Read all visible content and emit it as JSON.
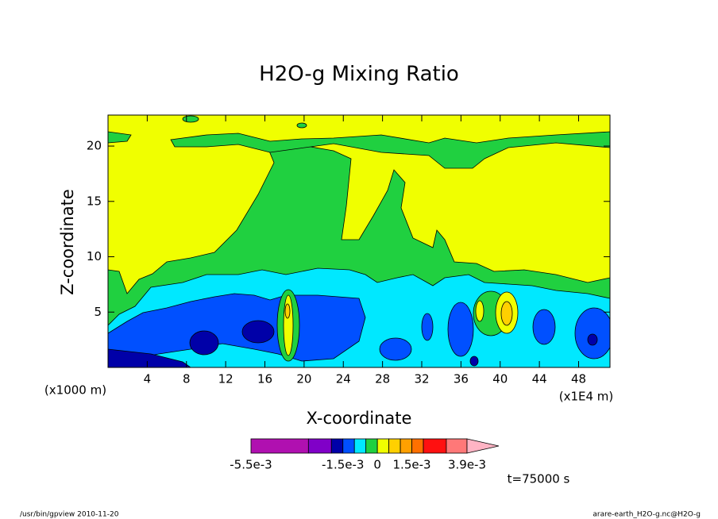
{
  "chart_data": {
    "type": "contourf",
    "title": "H2O-g Mixing Ratio",
    "x_label": "X-coordinate",
    "y_label": "Z-coordinate",
    "x_unit": "(x1E4 m)",
    "y_unit": "(x1000 m)",
    "xlim": [
      0,
      51.2
    ],
    "ylim": [
      0,
      22.8
    ],
    "xticks": [
      4,
      8,
      12,
      16,
      20,
      24,
      28,
      32,
      36,
      40,
      44,
      48
    ],
    "yticks": [
      5,
      10,
      15,
      20
    ],
    "colorbar": {
      "levels": [
        -0.0055,
        -0.003,
        -0.002,
        -0.0015,
        -0.001,
        -0.0005,
        0,
        0.0005,
        0.001,
        0.0015,
        0.002,
        0.003,
        0.0039
      ],
      "colors": [
        "#b010b0",
        "#8000c8",
        "#0000a8",
        "#0050ff",
        "#00e8ff",
        "#20d040",
        "#f0ff00",
        "#ffd000",
        "#ffa000",
        "#ff7000",
        "#ff1010",
        "#ff7878"
      ],
      "over_color": "#ffb4c4",
      "ticks": [
        {
          "value": -0.0055,
          "label": "-5.5e-3"
        },
        {
          "value": -0.0015,
          "label": "-1.5e-3"
        },
        0,
        {
          "value": 0.0015,
          "label": "1.5e-3"
        },
        {
          "value": 0.0039,
          "label": "3.9e-3"
        }
      ]
    },
    "time_label": "t=75000 s",
    "footer_left": "/usr/bin/gpview  2010-11-20",
    "footer_right": "arare-earth_H2O-g.nc@H2O-g"
  }
}
